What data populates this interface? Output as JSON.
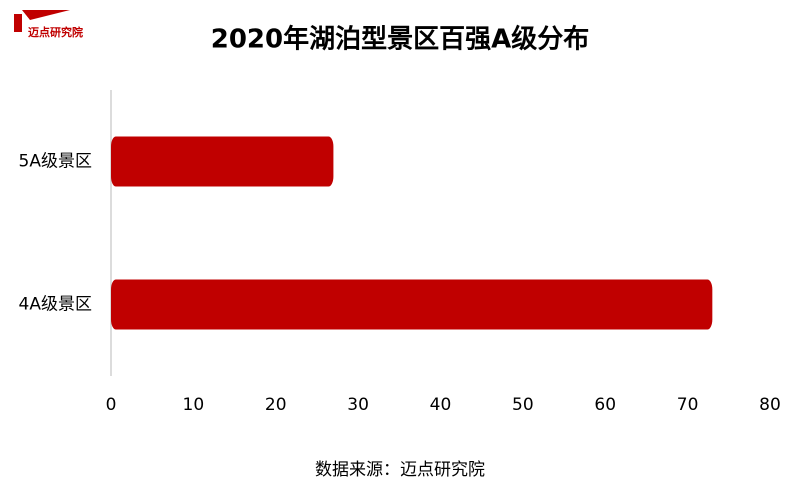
{
  "chart_data": {
    "type": "bar",
    "orientation": "horizontal",
    "title": "2020年湖泊型景区百强A级分布",
    "logo_text": "迈点研究院",
    "source": "数据来源：迈点研究院",
    "categories": [
      "5A级景区",
      "4A级景区"
    ],
    "values": [
      27,
      73
    ],
    "color": "#c00000",
    "xlim": [
      0,
      80
    ],
    "xticks": [
      0,
      10,
      20,
      30,
      40,
      50,
      60,
      70,
      80
    ]
  }
}
